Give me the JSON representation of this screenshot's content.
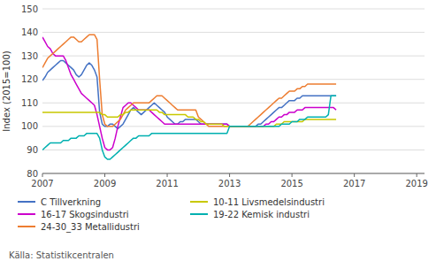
{
  "chart_data": {
    "type": "line",
    "y_label": "Index (2015=100)",
    "annotations": [
      "Källa: Statistikcentralen"
    ],
    "xlim": [
      2007.0,
      2019.25
    ],
    "xticks": [
      2007,
      2009,
      2011,
      2013,
      2015,
      2017,
      2019
    ],
    "ylim": [
      80,
      150
    ],
    "yticks": [
      80,
      90,
      100,
      110,
      120,
      130,
      140,
      150
    ],
    "grid": true,
    "legend": "bottom",
    "x": [
      2007,
      2007.083333,
      2007.166667,
      2007.25,
      2007.333333,
      2007.416667,
      2007.5,
      2007.583333,
      2007.666667,
      2007.75,
      2007.833333,
      2007.916667,
      2008,
      2008.083333,
      2008.166667,
      2008.25,
      2008.333333,
      2008.416667,
      2008.5,
      2008.583333,
      2008.666667,
      2008.75,
      2008.833333,
      2008.916667,
      2009,
      2009.083333,
      2009.166667,
      2009.25,
      2009.333333,
      2009.416667,
      2009.5,
      2009.583333,
      2009.666667,
      2009.75,
      2009.833333,
      2009.916667,
      2010,
      2010.083333,
      2010.166667,
      2010.25,
      2010.333333,
      2010.416667,
      2010.5,
      2010.583333,
      2010.666667,
      2010.75,
      2010.833333,
      2010.916667,
      2011,
      2011.083333,
      2011.166667,
      2011.25,
      2011.333333,
      2011.416667,
      2011.5,
      2011.583333,
      2011.666667,
      2011.75,
      2011.833333,
      2011.916667,
      2012,
      2012.083333,
      2012.166667,
      2012.25,
      2012.333333,
      2012.416667,
      2012.5,
      2012.583333,
      2012.666667,
      2012.75,
      2012.833333,
      2012.916667,
      2013,
      2013.083333,
      2013.166667,
      2013.25,
      2013.333333,
      2013.416667,
      2013.5,
      2013.583333,
      2013.666667,
      2013.75,
      2013.833333,
      2013.916667,
      2014,
      2014.083333,
      2014.166667,
      2014.25,
      2014.333333,
      2014.416667,
      2014.5,
      2014.583333,
      2014.666667,
      2014.75,
      2014.833333,
      2014.916667,
      2015,
      2015.083333,
      2015.166667,
      2015.25,
      2015.333333,
      2015.416667,
      2015.5,
      2015.583333,
      2015.666667,
      2015.75,
      2015.833333,
      2015.916667,
      2016,
      2016.083333,
      2016.166667,
      2016.25,
      2016.333333,
      2016.416667
    ],
    "series": [
      {
        "name": "C Tillverkning",
        "color": "#4472c4",
        "values": [
          119.5,
          121,
          123,
          124,
          125,
          126,
          127,
          128,
          128,
          127,
          126,
          125,
          124,
          122,
          121,
          122,
          124,
          126,
          127,
          126,
          124,
          121,
          106,
          101,
          100,
          100,
          101,
          101,
          100,
          99,
          100,
          101,
          103,
          105,
          107,
          108,
          107,
          106,
          105,
          106,
          107,
          108,
          109,
          110,
          109,
          108,
          107,
          106,
          104,
          103,
          102,
          101,
          101,
          102,
          102,
          103,
          103,
          103,
          103,
          103,
          102,
          101,
          101,
          101,
          101,
          101,
          101,
          101,
          101,
          101,
          101,
          101,
          100,
          100,
          100,
          100,
          100,
          100,
          100,
          100,
          100,
          100,
          100,
          101,
          101,
          102,
          103,
          104,
          105,
          106,
          107,
          108,
          108,
          109,
          110,
          111,
          111,
          111,
          112,
          112,
          113,
          113,
          113,
          113,
          113,
          113,
          113,
          113,
          113,
          113,
          113,
          113,
          113,
          113
        ]
      },
      {
        "name": "16-17 Skogsindustri",
        "color": "#cc00cc",
        "values": [
          138,
          136,
          134,
          133,
          131,
          130,
          130,
          130,
          130,
          128,
          125,
          122,
          120,
          118,
          116,
          114,
          113,
          112,
          111,
          110,
          109,
          105,
          100,
          95,
          91,
          90,
          90,
          91,
          95,
          100,
          104,
          108,
          109,
          110,
          110,
          109,
          108,
          107,
          107,
          107,
          107,
          107,
          106,
          105,
          104,
          103,
          102,
          101,
          101,
          101,
          101,
          101,
          101,
          101,
          101,
          101,
          101,
          101,
          101,
          101,
          101,
          101,
          101,
          101,
          101,
          101,
          101,
          101,
          101,
          101,
          101,
          101,
          100,
          100,
          100,
          100,
          100,
          100,
          100,
          100,
          100,
          100,
          100,
          100,
          100,
          100,
          101,
          101,
          102,
          102,
          103,
          104,
          104,
          105,
          105,
          106,
          106,
          106,
          107,
          107,
          107,
          108,
          108,
          108,
          108,
          108,
          108,
          108,
          108,
          108,
          108,
          108,
          108,
          107
        ]
      },
      {
        "name": "24-30_33 Metallidustri",
        "color": "#ed7d31",
        "values": [
          125,
          127,
          129,
          130,
          131,
          132,
          133,
          134,
          135,
          136,
          137,
          138,
          138,
          137,
          136,
          136,
          137,
          138,
          139,
          139,
          139,
          137,
          120,
          105,
          101,
          100,
          100,
          100,
          101,
          102,
          103,
          105,
          107,
          108,
          109,
          110,
          110,
          110,
          110,
          110,
          110,
          110,
          111,
          112,
          113,
          113,
          113,
          112,
          111,
          110,
          109,
          108,
          107,
          107,
          107,
          107,
          107,
          107,
          107,
          107,
          104,
          103,
          102,
          101,
          100,
          100,
          100,
          100,
          100,
          100,
          100,
          100,
          100,
          100,
          100,
          100,
          100,
          100,
          100,
          100,
          101,
          102,
          103,
          104,
          105,
          106,
          107,
          108,
          109,
          110,
          111,
          112,
          112,
          113,
          114,
          115,
          115,
          115,
          116,
          116,
          117,
          117,
          118,
          118,
          118,
          118,
          118,
          118,
          118,
          118,
          118,
          118,
          118,
          118
        ]
      },
      {
        "name": "10-11 Livsmedelsindustri",
        "color": "#c8c800",
        "values": [
          106,
          106,
          106,
          106,
          106,
          106,
          106,
          106,
          106,
          106,
          106,
          106,
          106,
          106,
          106,
          106,
          106,
          106,
          106,
          106,
          106,
          106,
          106,
          105,
          105,
          104,
          104,
          104,
          104,
          104,
          105,
          105,
          106,
          106,
          107,
          107,
          107,
          107,
          107,
          107,
          107,
          107,
          107,
          107,
          107,
          106,
          106,
          105,
          105,
          105,
          105,
          105,
          105,
          105,
          105,
          105,
          104,
          104,
          104,
          103,
          103,
          102,
          102,
          101,
          101,
          101,
          101,
          101,
          101,
          101,
          100,
          100,
          100,
          100,
          100,
          100,
          100,
          100,
          100,
          100,
          100,
          100,
          100,
          100,
          100,
          100,
          100,
          100,
          100,
          100,
          101,
          101,
          101,
          102,
          102,
          102,
          102,
          102,
          102,
          102,
          102,
          103,
          103,
          103,
          103,
          103,
          103,
          103,
          103,
          103,
          103,
          103,
          103,
          103
        ]
      },
      {
        "name": "19-22 Kemisk industri",
        "color": "#00b0b0",
        "values": [
          90,
          91,
          92,
          93,
          93,
          93,
          93,
          93,
          94,
          94,
          94,
          95,
          95,
          95,
          96,
          96,
          96,
          97,
          97,
          97,
          97,
          97,
          95,
          90,
          87,
          86,
          86,
          87,
          88,
          89,
          90,
          91,
          92,
          93,
          94,
          95,
          95,
          96,
          96,
          96,
          96,
          96,
          97,
          97,
          97,
          97,
          97,
          97,
          97,
          97,
          97,
          97,
          97,
          97,
          97,
          97,
          97,
          97,
          97,
          97,
          97,
          97,
          97,
          97,
          97,
          97,
          97,
          97,
          97,
          97,
          97,
          97,
          100,
          100,
          100,
          100,
          100,
          100,
          100,
          100,
          100,
          100,
          100,
          100,
          100,
          100,
          100,
          100,
          100,
          100,
          100,
          100,
          101,
          101,
          101,
          101,
          102,
          102,
          102,
          103,
          103,
          103,
          104,
          104,
          104,
          104,
          104,
          104,
          104,
          104,
          105,
          113,
          113,
          113
        ]
      }
    ]
  }
}
